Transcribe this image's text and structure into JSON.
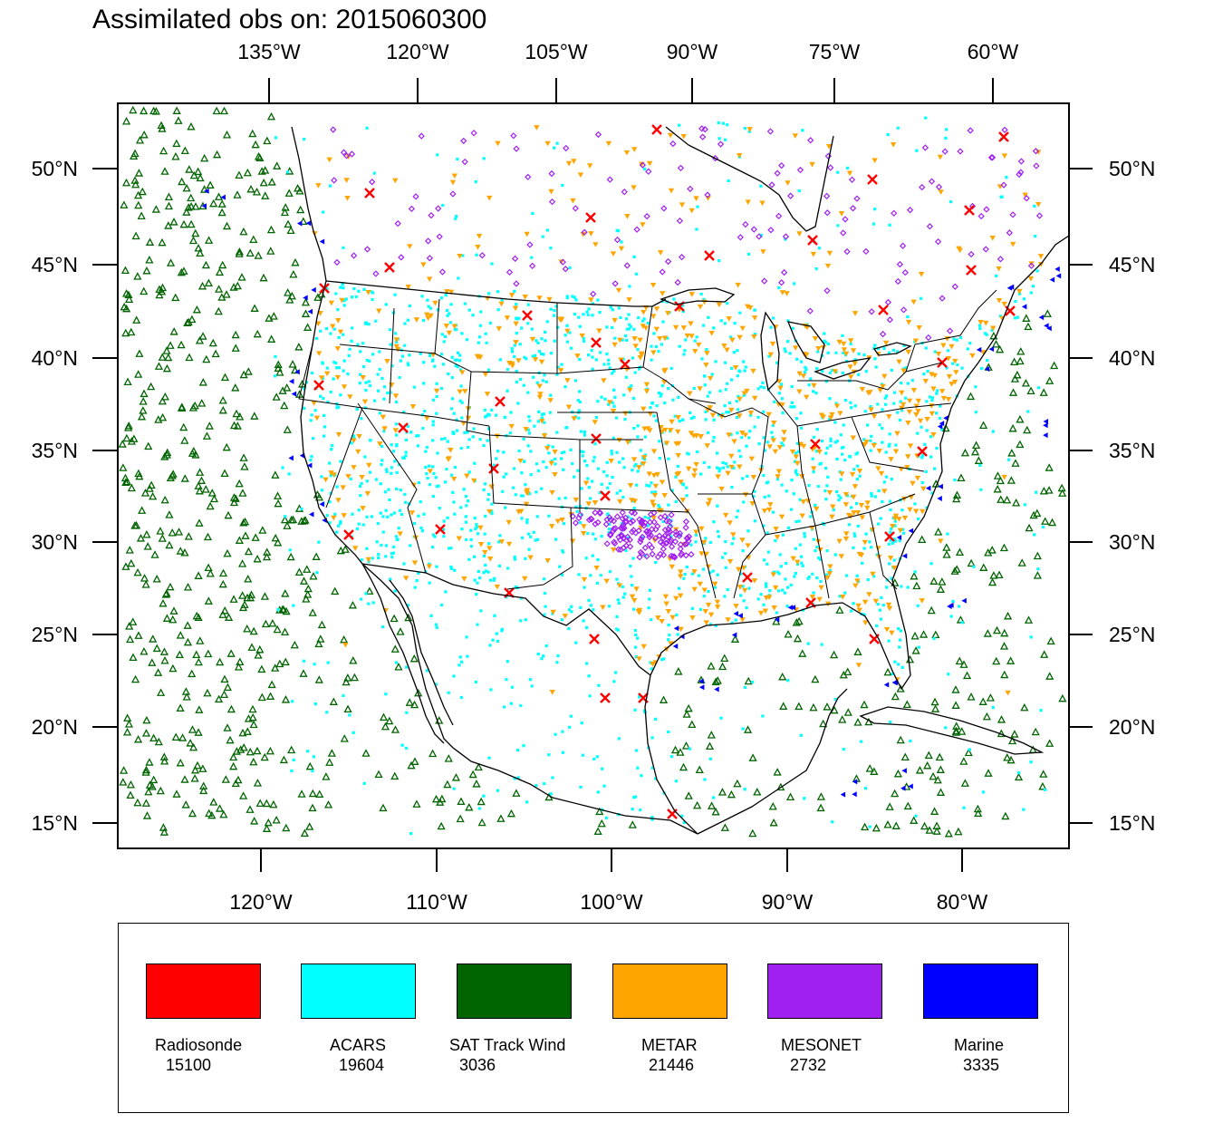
{
  "title": "Assimilated obs on: 2015060300",
  "axes": {
    "top_ticks": [
      "135°W",
      "120°W",
      "105°W",
      "90°W",
      "75°W",
      "60°W"
    ],
    "bottom_ticks": [
      "120°W",
      "110°W",
      "100°W",
      "90°W",
      "80°W"
    ],
    "lat_ticks": [
      "50°N",
      "45°N",
      "40°N",
      "35°N",
      "30°N",
      "25°N",
      "20°N",
      "15°N"
    ]
  },
  "legend": [
    {
      "name": "Radiosonde",
      "count": "15100",
      "color": "#ff0000"
    },
    {
      "name": "ACARS",
      "count": "19604",
      "color": "#00ffff"
    },
    {
      "name": "SAT Track Wind",
      "count": "3036",
      "color": "#006400"
    },
    {
      "name": "METAR",
      "count": "21446",
      "color": "#ffa500"
    },
    {
      "name": "MESONET",
      "count": "2732",
      "color": "#a020f0"
    },
    {
      "name": "Marine",
      "count": "3335",
      "color": "#0000ff"
    }
  ],
  "colors": {
    "radiosonde": "#ff0000",
    "acars": "#00ffff",
    "sat_track_wind": "#006400",
    "metar": "#ffa500",
    "mesonet": "#a020f0",
    "marine": "#0000ff"
  }
}
